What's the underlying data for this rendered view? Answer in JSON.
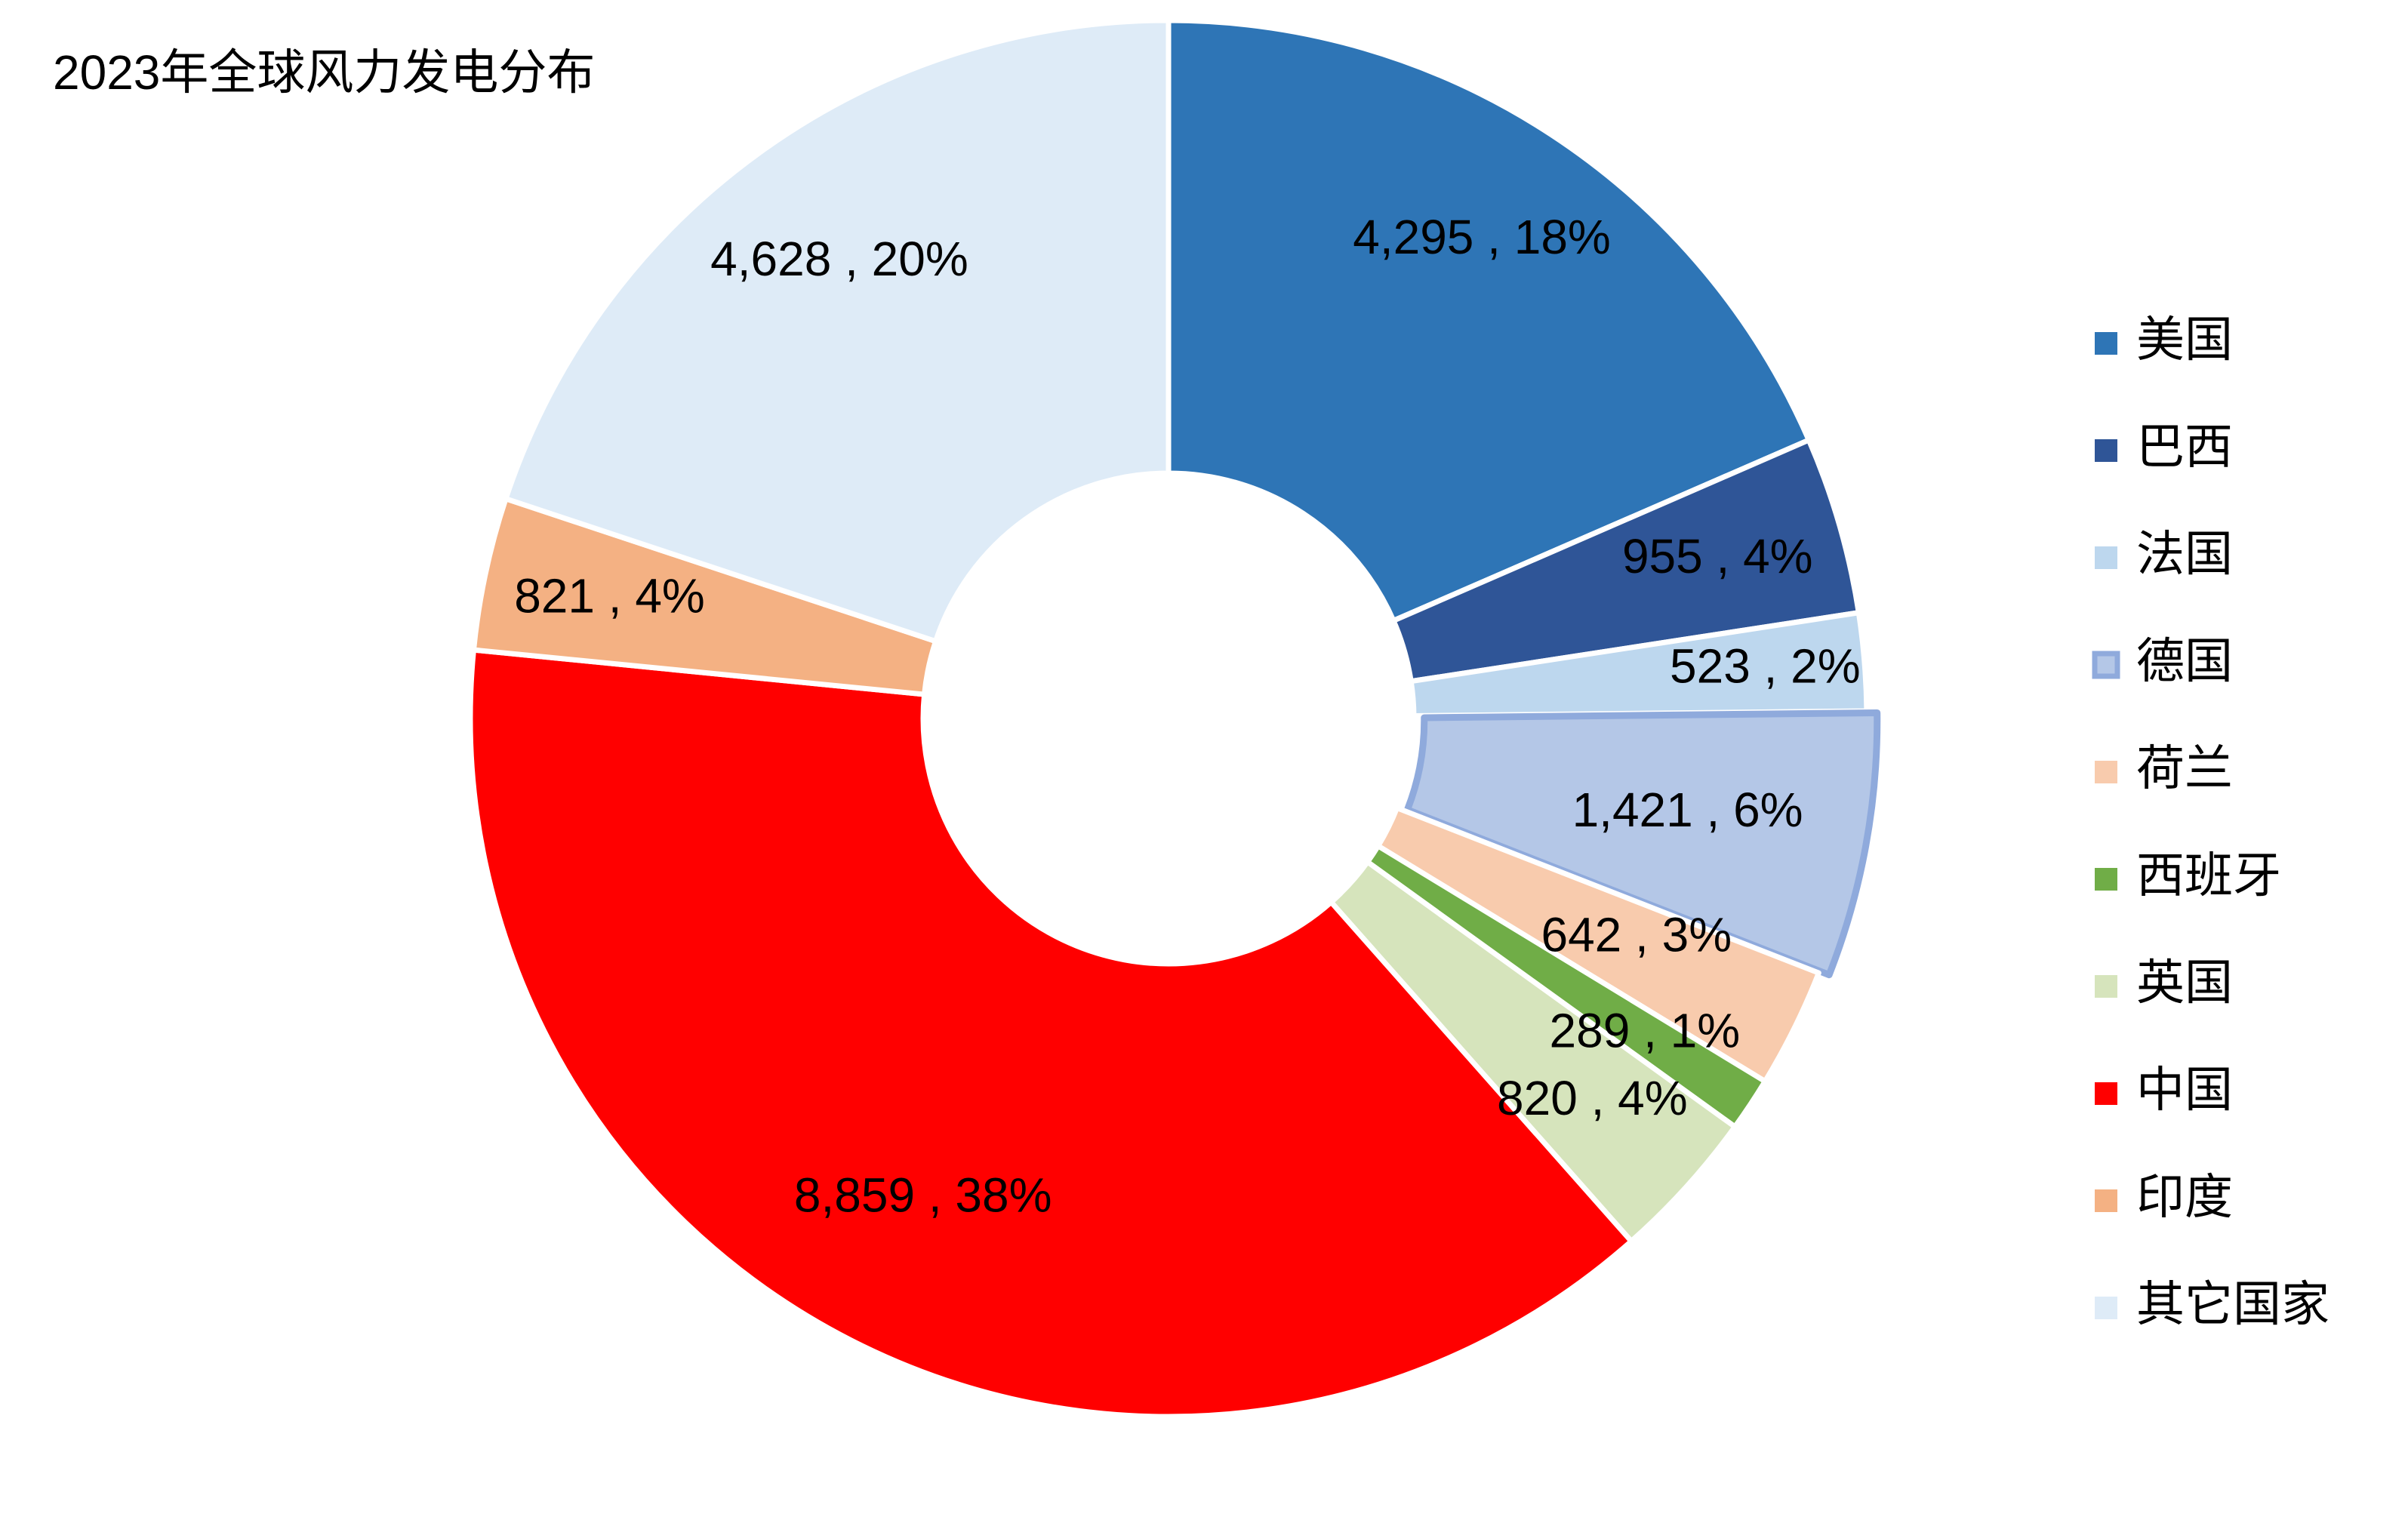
{
  "chart_data": {
    "type": "pie",
    "subtype": "donut",
    "title": "2023年全球风力发电分布",
    "label_separator": " , ",
    "legend_position": "right",
    "categories": [
      "美国",
      "巴西",
      "法国",
      "德国",
      "荷兰",
      "西班牙",
      "英国",
      "中国",
      "印度",
      "其它国家"
    ],
    "values": [
      4295,
      955,
      523,
      1421,
      642,
      289,
      820,
      8859,
      821,
      4628
    ],
    "percent_labels": [
      "18%",
      "4%",
      "2%",
      "6%",
      "3%",
      "1%",
      "4%",
      "38%",
      "4%",
      "20%"
    ],
    "value_labels": [
      "4,295",
      "955",
      "523",
      "1,421",
      "642",
      "289",
      "820",
      "8,859",
      "821",
      "4,628"
    ],
    "colors": [
      "#2E75B6",
      "#2F5597",
      "#BDD7EE",
      "#B4C7E7",
      "#F8CBAD",
      "#70AD47",
      "#D6E4BC",
      "#FF0000",
      "#F4B183",
      "#DEEBF7"
    ],
    "highlighted": "德国"
  }
}
